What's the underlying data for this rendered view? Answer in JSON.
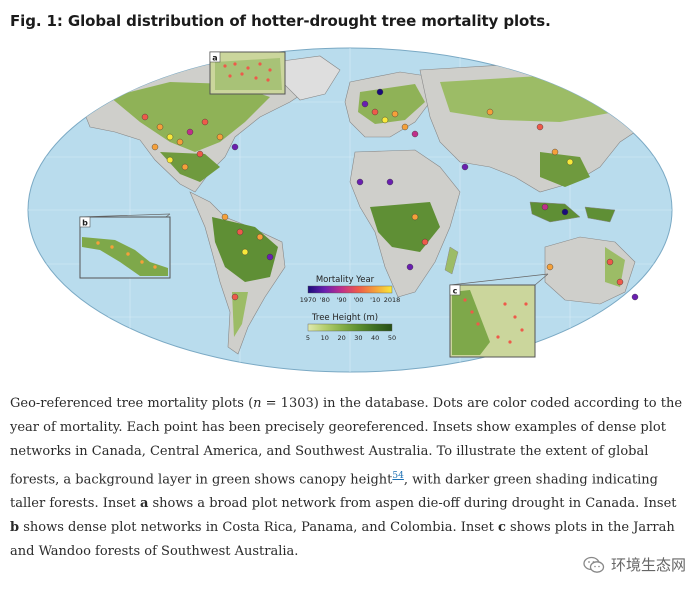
{
  "figure": {
    "title": "Fig. 1: Global distribution of hotter-drought tree mortality plots."
  },
  "map": {
    "legend": {
      "mortality_title": "Mortality Year",
      "mortality_ticks": [
        "1970",
        "'80",
        "'90",
        "'00",
        "'10",
        "2018"
      ],
      "mortality_colors": [
        "#1a0c7a",
        "#6a1fb0",
        "#c02f8a",
        "#ee5a4a",
        "#f5a03a",
        "#f8e83a"
      ],
      "height_title": "Tree Height (m)",
      "height_ticks": [
        "5",
        "10",
        "20",
        "30",
        "40",
        "50"
      ],
      "height_colors": [
        "#dfe9b0",
        "#b5cf6f",
        "#86b048",
        "#5c8f2f",
        "#3c6e22",
        "#274f17"
      ]
    },
    "insets": [
      {
        "label": "a"
      },
      {
        "label": "b"
      },
      {
        "label": "c"
      }
    ],
    "colors": {
      "ocean": "#b9dced",
      "land_gray": "#cfcfcb",
      "forest": "#8fb257",
      "forest_dark": "#5f8f35"
    }
  },
  "caption": {
    "p1": "Geo-referenced tree mortality plots (",
    "n_var": "n",
    "p2": " = 1303) in the database. Dots are color coded according to the year of mortality. Each point has been precisely georeferenced. Insets show examples of dense plot networks in Canada, Central America, and Southwest Australia. To illustrate the extent of global forests, a background layer in green shows canopy height",
    "ref": "54",
    "p3": ", with darker green shading indicating taller forests. Inset ",
    "a": "a",
    "p4": " shows a broad plot network from aspen die-off during drought in Canada. Inset ",
    "b": "b",
    "p5": " shows dense plot networks in Costa Rica, Panama, and Colombia. Inset ",
    "c": "c",
    "p6": " shows plots in the Jarrah and Wandoo forests of Southwest Australia."
  },
  "watermark": {
    "text": "环境生态网",
    "icon": "wechat-icon"
  }
}
